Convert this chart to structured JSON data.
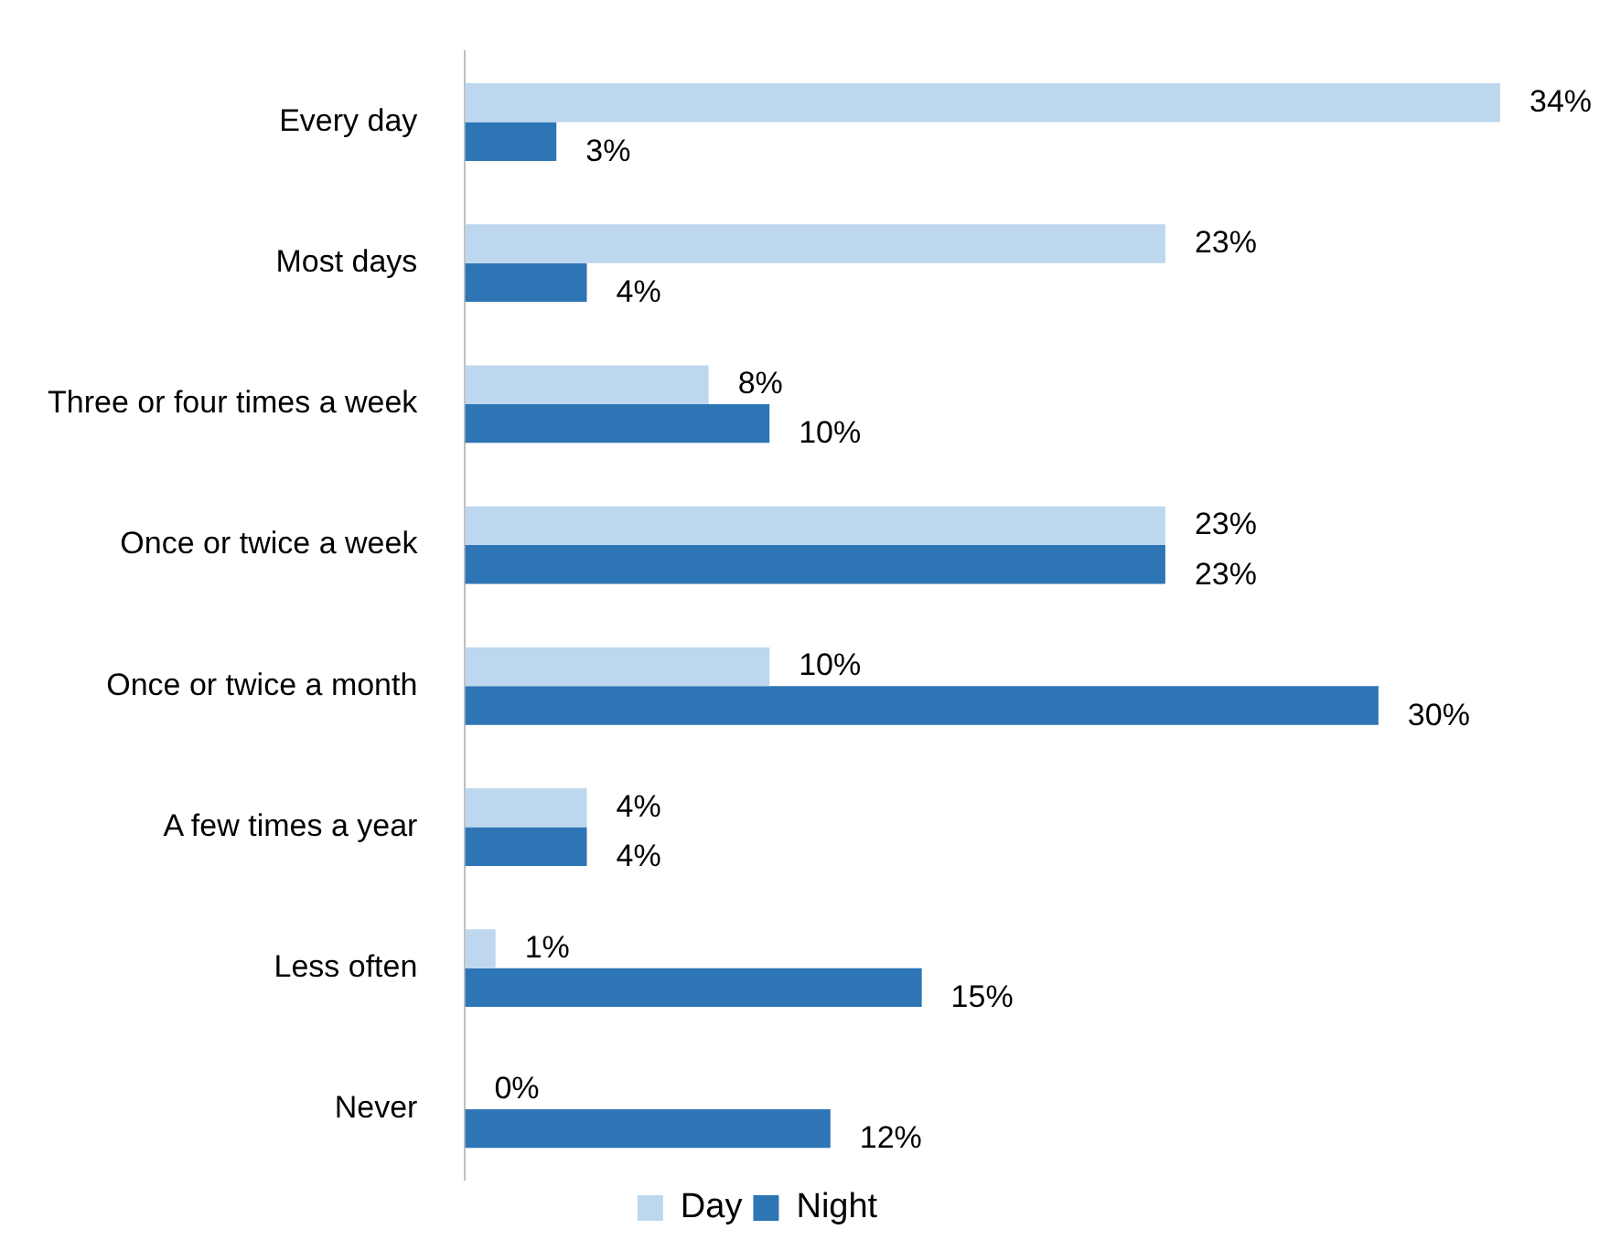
{
  "chart_data": {
    "type": "bar",
    "orientation": "horizontal",
    "categories": [
      "Every day",
      "Most days",
      "Three or four times a week",
      "Once or twice a week",
      "Once or twice a month",
      "A few times a year",
      "Less often",
      "Never"
    ],
    "series": [
      {
        "name": "Day",
        "color": "#bdd7ee",
        "values": [
          34,
          23,
          8,
          23,
          10,
          4,
          1,
          0
        ],
        "value_labels": [
          "34%",
          "23%",
          "8%",
          "23%",
          "10%",
          "4%",
          "1%",
          "0%"
        ]
      },
      {
        "name": "Night",
        "color": "#2e75b6",
        "values": [
          3,
          4,
          10,
          23,
          30,
          4,
          15,
          12
        ],
        "value_labels": [
          "3%",
          "4%",
          "10%",
          "23%",
          "30%",
          "4%",
          "15%",
          "12%"
        ]
      }
    ],
    "legend": "bottom",
    "grid": false
  }
}
